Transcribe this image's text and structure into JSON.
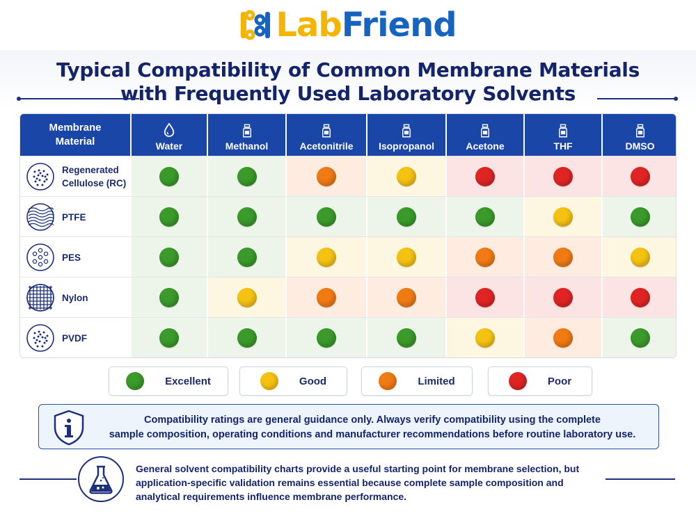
{
  "brand": {
    "lab": "Lab",
    "friend": "Friend",
    "colors": {
      "lab": "#f4b400",
      "friend": "#1565c0"
    }
  },
  "title": {
    "line1": "Typical Compatibility of Common Membrane Materials",
    "line2": "with Frequently Used Laboratory Solvents"
  },
  "table": {
    "corner_line1": "Membrane",
    "corner_line2": "Material",
    "solvents": [
      {
        "name": "Water",
        "icon": "droplet-icon"
      },
      {
        "name": "Methanol",
        "icon": "bottle-icon"
      },
      {
        "name": "Acetonitrile",
        "icon": "bottle-icon"
      },
      {
        "name": "Isopropanol",
        "icon": "bottle-icon"
      },
      {
        "name": "Acetone",
        "icon": "bottle-icon"
      },
      {
        "name": "THF",
        "icon": "bottle-icon"
      },
      {
        "name": "DMSO",
        "icon": "bottle-icon"
      }
    ],
    "rows": [
      {
        "material_line1": "Regenerated",
        "material_line2": "Cellulose (RC)",
        "icon": "membrane-dots-icon",
        "ratings": [
          "excellent",
          "excellent",
          "limited",
          "good",
          "poor",
          "poor",
          "poor"
        ]
      },
      {
        "material_line1": "PTFE",
        "material_line2": "",
        "icon": "membrane-waves-icon",
        "ratings": [
          "excellent",
          "excellent",
          "excellent",
          "excellent",
          "excellent",
          "good",
          "excellent"
        ]
      },
      {
        "material_line1": "PES",
        "material_line2": "",
        "icon": "membrane-pores-icon",
        "ratings": [
          "excellent",
          "excellent",
          "good",
          "good",
          "limited",
          "limited",
          "good"
        ]
      },
      {
        "material_line1": "Nylon",
        "material_line2": "",
        "icon": "membrane-mesh-icon",
        "ratings": [
          "excellent",
          "good",
          "limited",
          "limited",
          "poor",
          "poor",
          "poor"
        ]
      },
      {
        "material_line1": "PVDF",
        "material_line2": "",
        "icon": "membrane-dots-icon",
        "ratings": [
          "excellent",
          "excellent",
          "excellent",
          "excellent",
          "good",
          "limited",
          "excellent"
        ]
      }
    ]
  },
  "rating_colors": {
    "excellent": {
      "dot": "#3a9a2a",
      "bg": "#edf4ea"
    },
    "good": {
      "dot": "#f5c211",
      "bg": "#fdf6e1"
    },
    "limited": {
      "dot": "#f07a14",
      "bg": "#fdecdf"
    },
    "poor": {
      "dot": "#e02424",
      "bg": "#fce4e4"
    }
  },
  "legend": [
    {
      "key": "excellent",
      "label": "Excellent"
    },
    {
      "key": "good",
      "label": "Good"
    },
    {
      "key": "limited",
      "label": "Limited"
    },
    {
      "key": "poor",
      "label": "Poor"
    }
  ],
  "notice": {
    "icon": "shield-info-icon",
    "line1": "Compatibility ratings are general guidance only.  Always verify compatibility using the complete",
    "line2": "sample composition, operating conditions and manufacturer recommendations before routine laboratory use."
  },
  "footer": {
    "icon": "flask-icon",
    "line1": "General solvent compatibility charts provide a useful starting point for membrane selection, but",
    "line2": "application-specific validation remains essential because complete sample composition and",
    "line3": "analytical requirements influence membrane  performance."
  }
}
